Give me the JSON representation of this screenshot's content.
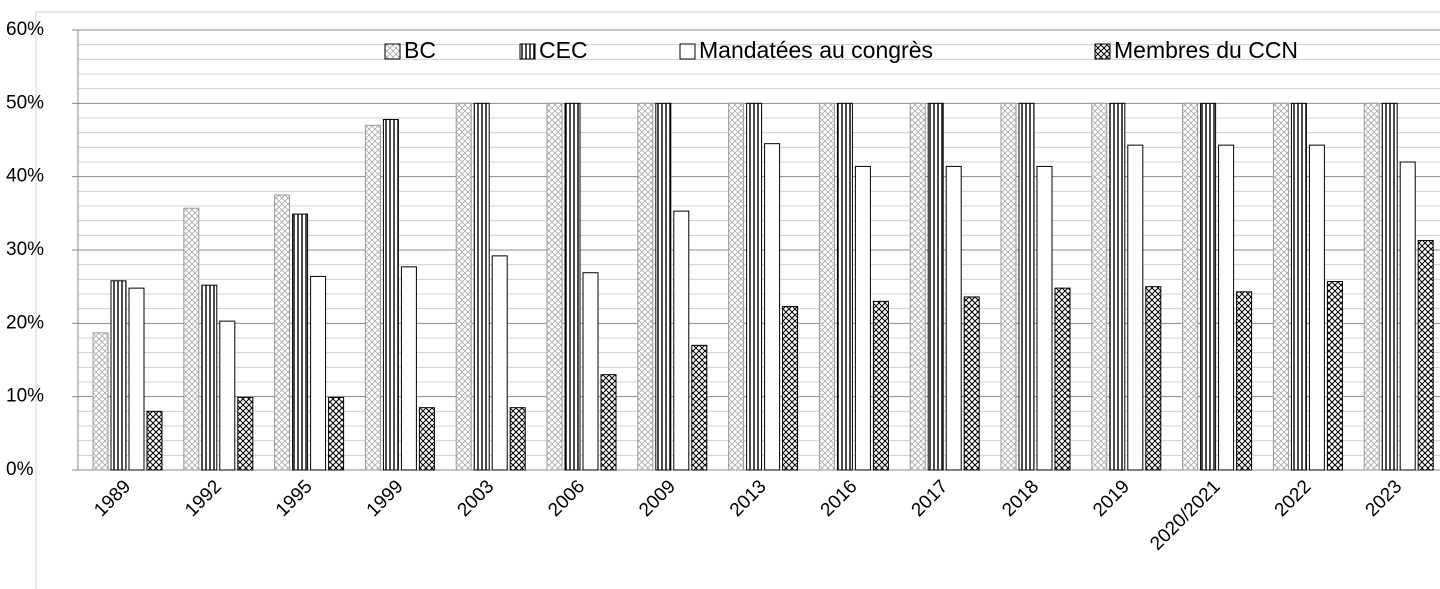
{
  "chart_data": {
    "type": "bar",
    "categories": [
      "1989",
      "1992",
      "1995",
      "1999",
      "2003",
      "2006",
      "2009",
      "2013",
      "2016",
      "2017",
      "2018",
      "2019",
      "2020/2021",
      "2022",
      "2023"
    ],
    "series": [
      {
        "name": "BC",
        "color": "#a0a0a0",
        "pattern": "light-crosshatch",
        "values": [
          18.7,
          35.7,
          37.5,
          47.0,
          50,
          50,
          50,
          50,
          50,
          50,
          50,
          50,
          50,
          50,
          50
        ]
      },
      {
        "name": "CEC",
        "color": "#000000",
        "pattern": "vertical",
        "values": [
          25.8,
          25.2,
          34.9,
          47.8,
          50,
          50,
          50,
          50,
          50,
          50,
          50,
          50,
          50,
          50,
          50
        ]
      },
      {
        "name": "Mandatées au congrès",
        "color": "#000000",
        "pattern": "none",
        "values": [
          24.8,
          20.3,
          26.4,
          27.7,
          29.2,
          26.9,
          35.3,
          44.5,
          41.4,
          41.4,
          41.4,
          44.3,
          44.3,
          44.3,
          42.0
        ]
      },
      {
        "name": "Membres du CCN",
        "color": "#000000",
        "pattern": "crosshatch",
        "values": [
          8.0,
          9.9,
          9.9,
          8.5,
          8.5,
          13.0,
          17.0,
          22.3,
          23.0,
          23.6,
          24.8,
          25.0,
          24.3,
          25.7,
          31.3
        ]
      }
    ],
    "ylim": [
      0,
      60
    ],
    "yticks": [
      {
        "value": 0,
        "label": "0%"
      },
      {
        "value": 10,
        "label": "10%"
      },
      {
        "value": 20,
        "label": "20%"
      },
      {
        "value": 30,
        "label": "30%"
      },
      {
        "value": 40,
        "label": "40%"
      },
      {
        "value": 50,
        "label": "50%"
      },
      {
        "value": 60,
        "label": "60%"
      }
    ],
    "yticks_minor": [
      2,
      4,
      6,
      8,
      12,
      14,
      16,
      18,
      22,
      24,
      26,
      28,
      32,
      34,
      36,
      38,
      42,
      44,
      46,
      48,
      52,
      54,
      56,
      58
    ],
    "grid": true,
    "legend": "top"
  }
}
